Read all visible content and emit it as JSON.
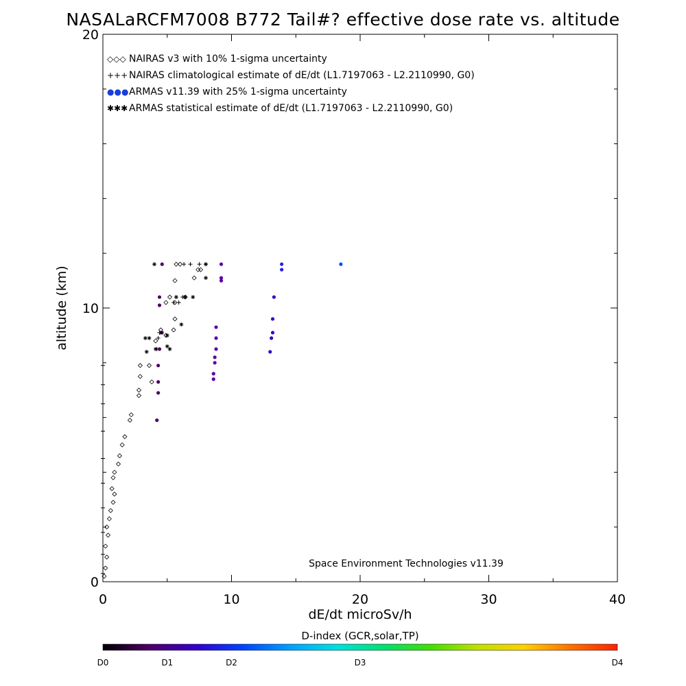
{
  "title": "NASALaRCFM7008  B772 Tail#? effective dose rate vs. altitude",
  "credit": "Space Environment Technologies v11.39",
  "chart_data": {
    "type": "scatter",
    "title": "NASALaRCFM7008  B772 Tail#? effective dose rate vs. altitude",
    "xlabel": "dE/dt microSv/h",
    "ylabel": "altitude (km)",
    "xlim": [
      0,
      40
    ],
    "ylim": [
      0,
      20
    ],
    "x_ticks": [
      0,
      10,
      20,
      30,
      40
    ],
    "y_ticks": [
      0,
      10,
      20
    ],
    "grid": false,
    "legend_position": "top-left",
    "legend": [
      {
        "symbol": "◇◇◇",
        "label": "NAIRAS v3 with 10% 1-sigma uncertainty",
        "color": "#000000"
      },
      {
        "symbol": "+++",
        "label": "NAIRAS climatological estimate of dE/dt (L1.7197063 - L2.2110990, G0)",
        "color": "#000000"
      },
      {
        "symbol": "●●●",
        "label": "ARMAS v11.39 with 25% 1-sigma uncertainty",
        "color": "#1a3fd8"
      },
      {
        "symbol": "✱✱✱",
        "label": "ARMAS statistical estimate of dE/dt (L1.7197063 - L2.2110990, G0)",
        "color": "#000000"
      }
    ],
    "series": [
      {
        "name": "NAIRAS v3 with 10% 1-sigma uncertainty",
        "marker": "diamond",
        "points": [
          [
            0.1,
            0.2
          ],
          [
            0.2,
            0.5
          ],
          [
            0.3,
            0.9
          ],
          [
            0.2,
            1.3
          ],
          [
            0.4,
            1.7
          ],
          [
            0.3,
            2.0
          ],
          [
            0.5,
            2.3
          ],
          [
            0.6,
            2.6
          ],
          [
            0.8,
            2.9
          ],
          [
            0.9,
            3.2
          ],
          [
            0.7,
            3.4
          ],
          [
            0.8,
            3.8
          ],
          [
            0.9,
            4.0
          ],
          [
            1.2,
            4.3
          ],
          [
            1.3,
            4.6
          ],
          [
            1.5,
            5.0
          ],
          [
            1.7,
            5.3
          ],
          [
            2.1,
            5.9
          ],
          [
            2.2,
            6.1
          ],
          [
            2.8,
            6.8
          ],
          [
            2.8,
            7.0
          ],
          [
            2.9,
            7.5
          ],
          [
            2.9,
            7.9
          ],
          [
            3.8,
            7.3
          ],
          [
            3.6,
            7.9
          ],
          [
            4.1,
            8.8
          ],
          [
            4.5,
            9.2
          ],
          [
            4.9,
            9.0
          ],
          [
            5.5,
            9.2
          ],
          [
            5.6,
            9.6
          ],
          [
            4.9,
            10.2
          ],
          [
            5.2,
            10.4
          ],
          [
            5.6,
            10.2
          ],
          [
            6.4,
            10.4
          ],
          [
            5.6,
            11.0
          ],
          [
            5.7,
            11.6
          ],
          [
            6.0,
            11.6
          ],
          [
            7.1,
            11.1
          ],
          [
            7.4,
            11.4
          ],
          [
            7.6,
            11.4
          ]
        ]
      },
      {
        "name": "NAIRAS climatological estimate of dE/dt (L1.7197063 - L2.2110990, G0)",
        "marker": "plus",
        "points": [
          [
            0.0,
            0.3
          ],
          [
            0.0,
            1.0
          ],
          [
            0.0,
            1.8
          ],
          [
            0.0,
            2.7
          ],
          [
            0.0,
            3.6
          ],
          [
            0.0,
            4.5
          ],
          [
            0.0,
            5.5
          ],
          [
            0.0,
            6.5
          ],
          [
            0.0,
            7.2
          ],
          [
            0.0,
            7.9
          ],
          [
            4.2,
            8.5
          ],
          [
            4.3,
            8.9
          ],
          [
            4.4,
            9.1
          ],
          [
            5.5,
            10.2
          ],
          [
            5.9,
            10.2
          ],
          [
            6.2,
            10.4
          ],
          [
            6.3,
            11.6
          ],
          [
            6.8,
            11.6
          ],
          [
            7.5,
            11.6
          ],
          [
            8.0,
            11.6
          ]
        ]
      },
      {
        "name": "ARMAS v11.39 with 25% 1-sigma uncertainty",
        "marker": "filled-circle",
        "points": [
          [
            4.2,
            5.9
          ],
          [
            4.3,
            6.9
          ],
          [
            4.3,
            7.3
          ],
          [
            4.3,
            7.9
          ],
          [
            4.4,
            8.5
          ],
          [
            4.5,
            9.1
          ],
          [
            4.4,
            10.1
          ],
          [
            4.4,
            10.4
          ],
          [
            4.6,
            11.6
          ],
          [
            8.6,
            7.4
          ],
          [
            8.6,
            7.6
          ],
          [
            8.7,
            8.0
          ],
          [
            8.7,
            8.2
          ],
          [
            8.8,
            8.5
          ],
          [
            8.8,
            8.9
          ],
          [
            8.8,
            9.3
          ],
          [
            9.2,
            11.0
          ],
          [
            9.2,
            11.1
          ],
          [
            9.2,
            11.6
          ],
          [
            13.0,
            8.4
          ],
          [
            13.1,
            8.9
          ],
          [
            13.2,
            9.1
          ],
          [
            13.2,
            9.6
          ],
          [
            13.3,
            10.4
          ],
          [
            13.9,
            11.4
          ],
          [
            13.9,
            11.6
          ],
          [
            18.5,
            11.6
          ]
        ],
        "colors": [
          "#4d0066",
          "#4d0066",
          "#4d0066",
          "#4d0066",
          "#4d0066",
          "#4d0066",
          "#4d0066",
          "#4d0066",
          "#4d0066",
          "#5c00a3",
          "#5c00a3",
          "#5c00a3",
          "#5c00a3",
          "#5c00a3",
          "#5c00a3",
          "#5c00a3",
          "#5c00a3",
          "#5c00a3",
          "#5c00a3",
          "#3a00c8",
          "#3a00c8",
          "#3a00c8",
          "#3a00c8",
          "#3a00c8",
          "#2a20e0",
          "#2a20e0",
          "#0a4dff"
        ]
      },
      {
        "name": "ARMAS statistical estimate of dE/dt (L1.7197063 - L2.2110990, G0)",
        "marker": "asterisk",
        "points": [
          [
            3.3,
            8.9
          ],
          [
            3.4,
            8.4
          ],
          [
            3.6,
            8.9
          ],
          [
            4.1,
            8.5
          ],
          [
            4.6,
            9.1
          ],
          [
            5.0,
            8.6
          ],
          [
            5.0,
            9.0
          ],
          [
            5.2,
            8.5
          ],
          [
            5.7,
            10.4
          ],
          [
            6.1,
            9.4
          ],
          [
            6.4,
            10.4
          ],
          [
            7.0,
            10.4
          ],
          [
            8.0,
            11.1
          ],
          [
            8.0,
            11.6
          ],
          [
            4.0,
            11.6
          ]
        ]
      }
    ]
  },
  "colorbar": {
    "title": "D-index (GCR,solar,TP)",
    "range": [
      0,
      4
    ],
    "ticks": [
      {
        "value": 0,
        "label": "D0"
      },
      {
        "value": 0.5,
        "label": "D1"
      },
      {
        "value": 1,
        "label": "D2"
      },
      {
        "value": 2,
        "label": "D3"
      },
      {
        "value": 4,
        "label": "D4"
      }
    ],
    "stops": [
      "#000000",
      "#4d0066",
      "#3300cc",
      "#0044ff",
      "#00a0ff",
      "#00e0e0",
      "#00e070",
      "#40e000",
      "#c0e000",
      "#ffd000",
      "#ff7000",
      "#ff2000"
    ]
  }
}
